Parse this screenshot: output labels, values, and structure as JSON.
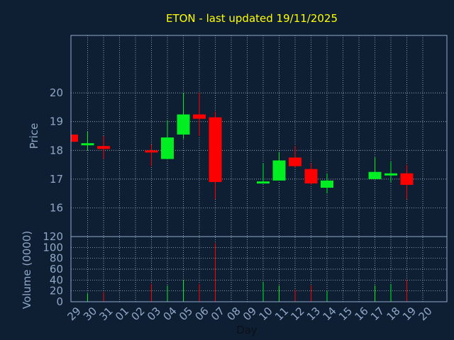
{
  "title": "ETON - last updated 19/11/2025",
  "colors": {
    "background": "#0f1f33",
    "axis": "#8fa8c8",
    "grid": "#c8d0dc",
    "title": "#ffff00",
    "up": "#00ee22",
    "down": "#ff0000"
  },
  "chart_data": [
    {
      "type": "candlestick",
      "ylabel": "Price",
      "ylim": [
        15,
        22
      ],
      "yticks": [
        "16",
        "17",
        "18",
        "19",
        "20"
      ],
      "grid": true,
      "x": [
        "29",
        "30",
        "31",
        "01",
        "02",
        "03",
        "04",
        "05",
        "06",
        "07",
        "08",
        "09",
        "10",
        "11",
        "12",
        "13",
        "14",
        "15",
        "16",
        "17",
        "18",
        "19",
        "20"
      ],
      "candles": [
        {
          "day": "29",
          "open": 18.55,
          "close": 18.3,
          "high": 18.55,
          "low": 18.3
        },
        {
          "day": "30",
          "open": 18.2,
          "close": 18.25,
          "high": 18.65,
          "low": 18.0
        },
        {
          "day": "31",
          "open": 18.15,
          "close": 18.05,
          "high": 18.5,
          "low": 17.7
        },
        {
          "day": "03",
          "open": 18.0,
          "close": 17.95,
          "high": 18.2,
          "low": 17.45
        },
        {
          "day": "04",
          "open": 17.7,
          "close": 18.45,
          "high": 19.05,
          "low": 17.7
        },
        {
          "day": "05",
          "open": 18.55,
          "close": 19.25,
          "high": 20.0,
          "low": 18.4
        },
        {
          "day": "06",
          "open": 19.25,
          "close": 19.1,
          "high": 20.0,
          "low": 18.5
        },
        {
          "day": "07",
          "open": 19.15,
          "close": 16.9,
          "high": 19.35,
          "low": 16.3
        },
        {
          "day": "10",
          "open": 16.85,
          "close": 16.92,
          "high": 17.55,
          "low": 16.85
        },
        {
          "day": "11",
          "open": 16.95,
          "close": 17.65,
          "high": 17.95,
          "low": 16.95
        },
        {
          "day": "12",
          "open": 17.75,
          "close": 17.45,
          "high": 18.15,
          "low": 17.4
        },
        {
          "day": "13",
          "open": 17.35,
          "close": 16.85,
          "high": 17.55,
          "low": 16.8
        },
        {
          "day": "14",
          "open": 16.7,
          "close": 16.95,
          "high": 17.2,
          "low": 16.5
        },
        {
          "day": "17",
          "open": 17.0,
          "close": 17.25,
          "high": 17.75,
          "low": 17.0
        },
        {
          "day": "18",
          "open": 17.15,
          "close": 17.2,
          "high": 17.6,
          "low": 16.9
        },
        {
          "day": "19",
          "open": 17.2,
          "close": 16.8,
          "high": 17.5,
          "low": 16.3
        }
      ]
    },
    {
      "type": "bar",
      "ylabel": "Volume (0000)",
      "xlabel": "Day",
      "ylim": [
        0,
        120
      ],
      "yticks": [
        "0",
        "20",
        "40",
        "60",
        "80",
        "100",
        "120"
      ],
      "grid": true,
      "categories": [
        "29",
        "30",
        "31",
        "01",
        "02",
        "03",
        "04",
        "05",
        "06",
        "07",
        "08",
        "09",
        "10",
        "11",
        "12",
        "13",
        "14",
        "15",
        "16",
        "17",
        "18",
        "19",
        "20"
      ],
      "volumes": [
        {
          "day": "30",
          "value": 15,
          "direction": "up"
        },
        {
          "day": "31",
          "value": 18,
          "direction": "down"
        },
        {
          "day": "03",
          "value": 33,
          "direction": "down"
        },
        {
          "day": "04",
          "value": 30,
          "direction": "up"
        },
        {
          "day": "05",
          "value": 40,
          "direction": "up"
        },
        {
          "day": "06",
          "value": 33,
          "direction": "down"
        },
        {
          "day": "07",
          "value": 108,
          "direction": "down"
        },
        {
          "day": "10",
          "value": 37,
          "direction": "up"
        },
        {
          "day": "11",
          "value": 30,
          "direction": "up"
        },
        {
          "day": "12",
          "value": 22,
          "direction": "down"
        },
        {
          "day": "13",
          "value": 30,
          "direction": "down"
        },
        {
          "day": "14",
          "value": 20,
          "direction": "up"
        },
        {
          "day": "17",
          "value": 30,
          "direction": "up"
        },
        {
          "day": "18",
          "value": 33,
          "direction": "up"
        },
        {
          "day": "19",
          "value": 40,
          "direction": "down"
        }
      ]
    }
  ]
}
